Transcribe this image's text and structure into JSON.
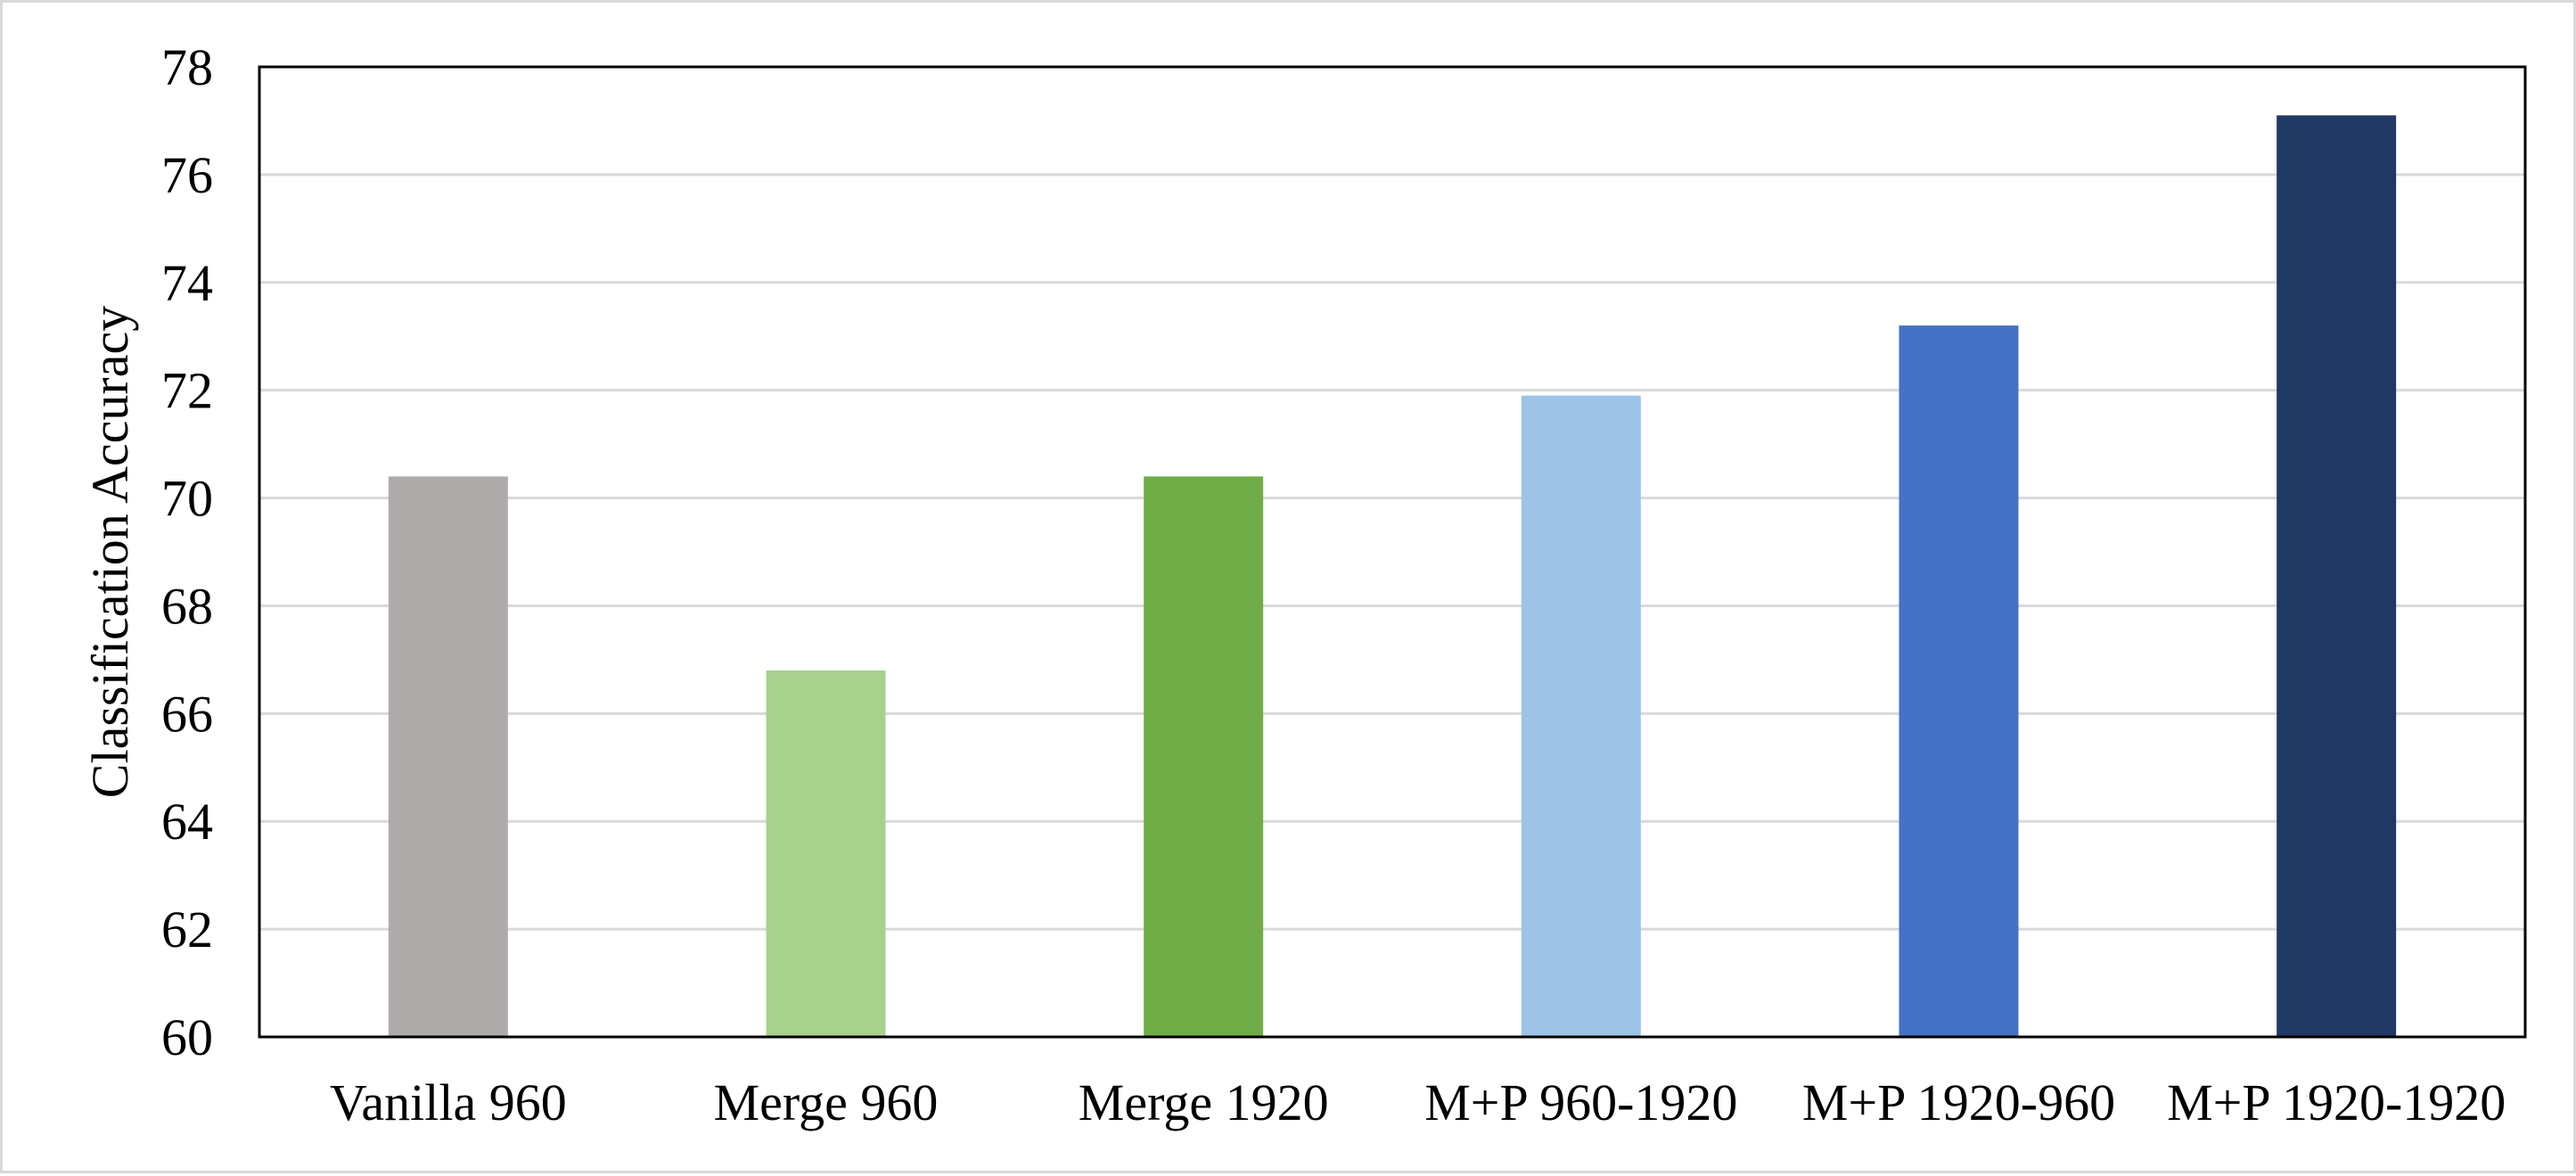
{
  "chart_data": {
    "type": "bar",
    "title": "",
    "xlabel": "",
    "ylabel": "Classification Accuracy",
    "ylim": [
      60,
      78
    ],
    "yticks": [
      60,
      62,
      64,
      66,
      68,
      70,
      72,
      74,
      76,
      78
    ],
    "grid": true,
    "legend": "none",
    "categories": [
      "Vanilla 960",
      "Merge 960",
      "Merge 1920",
      "M+P 960-1920",
      "M+P 1920-960",
      "M+P 1920-1920"
    ],
    "values": [
      70.4,
      66.8,
      70.4,
      71.9,
      73.2,
      77.1
    ],
    "colors": [
      "#afabab",
      "#a9d18e",
      "#70ad47",
      "#9dc3e6",
      "#4472c4",
      "#203864"
    ]
  }
}
